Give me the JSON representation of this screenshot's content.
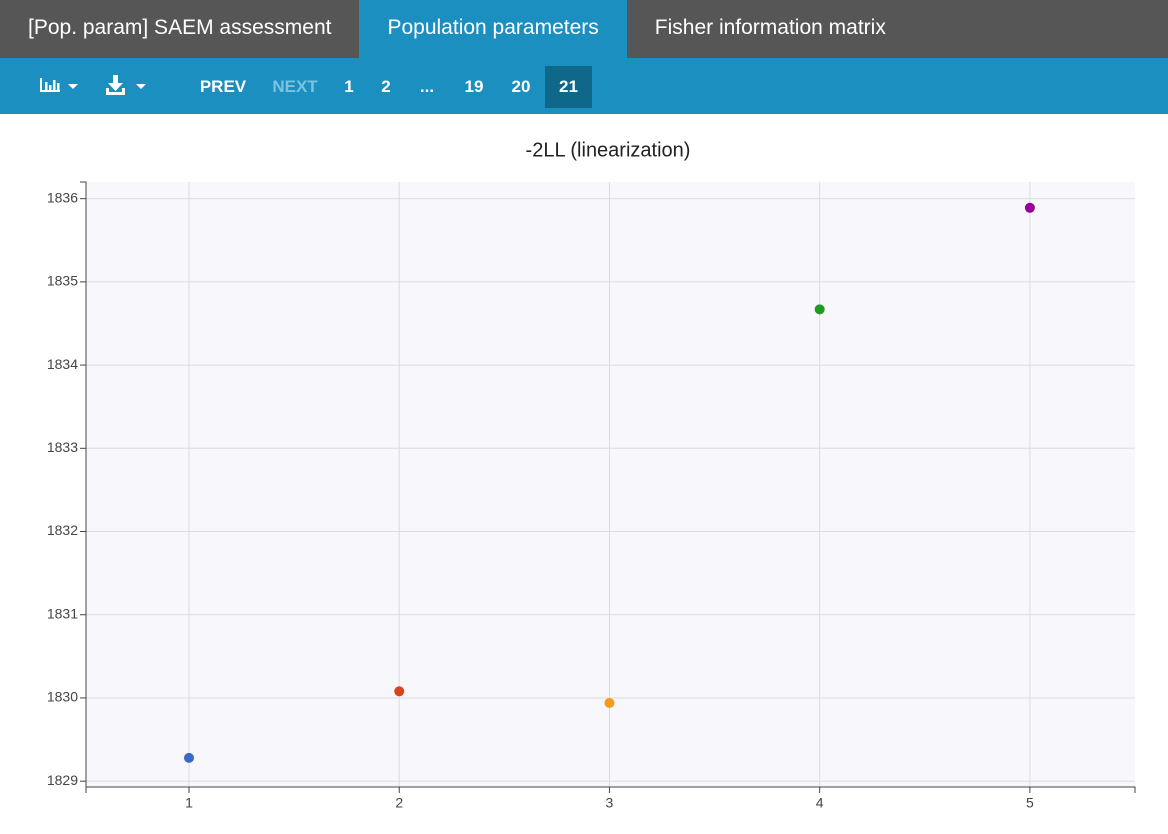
{
  "tabs": [
    {
      "label": "[Pop. param] SAEM assessment"
    },
    {
      "label": "Population parameters"
    },
    {
      "label": "Fisher information matrix"
    }
  ],
  "pagination": {
    "prev": "PREV",
    "next": "NEXT",
    "pages": [
      "1",
      "2",
      "...",
      "19",
      "20",
      "21"
    ]
  },
  "chart_data": {
    "type": "scatter",
    "title": "-2LL (linearization)",
    "x": [
      1,
      2,
      3,
      4,
      5
    ],
    "series": [
      {
        "values": [
          1829.28,
          1830.08,
          1829.94,
          1834.67,
          1835.89
        ],
        "colors": [
          "#3a67c8",
          "#d9441c",
          "#f59a1c",
          "#1f9a1f",
          "#990099"
        ]
      }
    ],
    "xlim": [
      0.51,
      5.5
    ],
    "xticks": [
      1,
      2,
      3,
      4,
      5
    ],
    "ylim": [
      1828.93,
      1836.2
    ],
    "yticks": [
      1829,
      1830,
      1831,
      1832,
      1833,
      1834,
      1835,
      1836
    ],
    "grid": true
  }
}
